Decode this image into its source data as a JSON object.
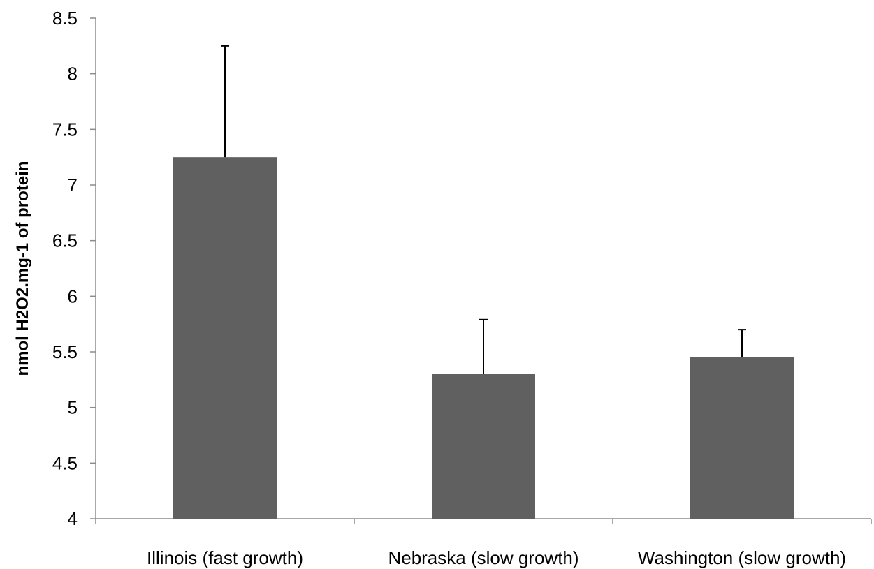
{
  "chart_data": {
    "type": "bar",
    "title": "",
    "xlabel": "",
    "ylabel": "nmol H2O2.mg-1 of protein",
    "categories": [
      "Illinois (fast growth)",
      "Nebraska (slow growth)",
      "Washington (slow growth)"
    ],
    "values": [
      7.25,
      5.3,
      5.45
    ],
    "error_plus": [
      1.0,
      0.49,
      0.25
    ],
    "ylim": [
      4,
      8.5
    ],
    "yticks": [
      "4",
      "4.5",
      "5",
      "5.5",
      "6",
      "6.5",
      "7",
      "7.5",
      "8",
      "8.5"
    ],
    "grid": false,
    "legend": "none",
    "bar_color": "#606060"
  }
}
